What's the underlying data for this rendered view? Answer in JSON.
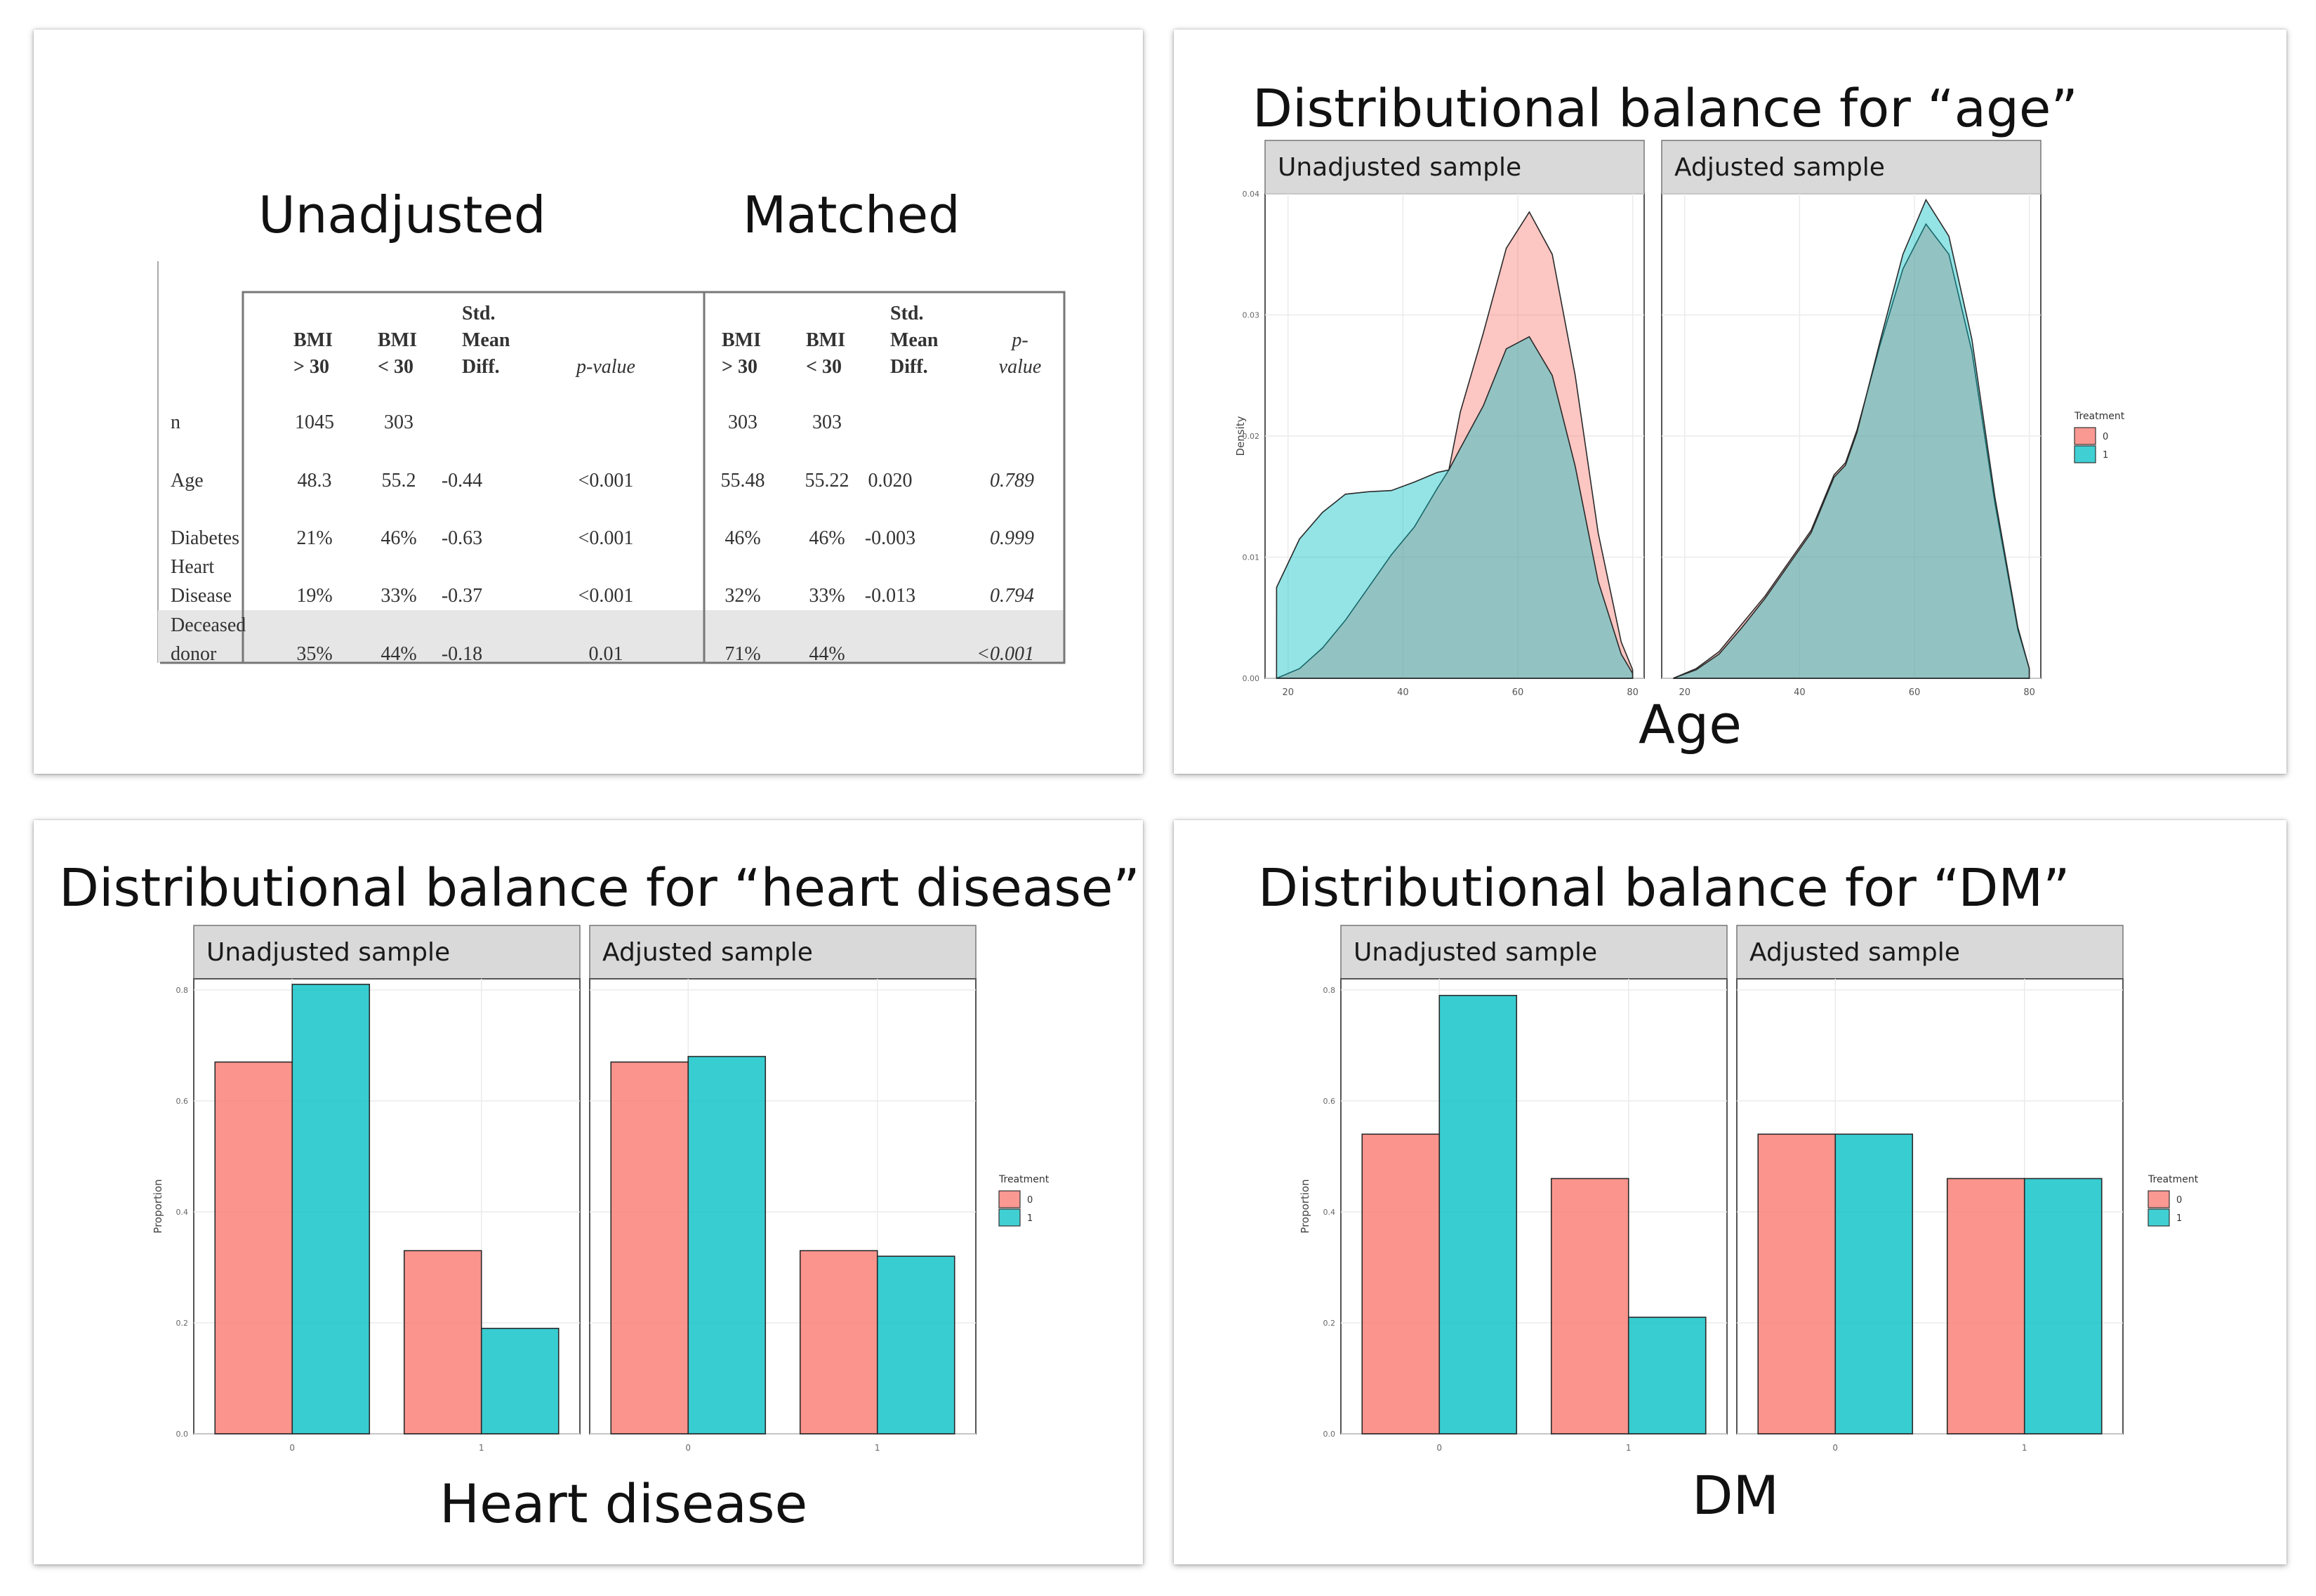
{
  "table_slide": {
    "left_header": "Unadjusted",
    "right_header": "Matched",
    "columns": [
      "",
      "BMI > 30",
      "BMI < 30",
      "Std. Mean Diff.",
      "p-value",
      "BMI > 30",
      "BMI < 30",
      "Std. Mean Diff.",
      "p-value"
    ],
    "col_lines": {
      "bmi_hi": [
        "BMI",
        "> 30"
      ],
      "bmi_lo": [
        "BMI",
        "< 30"
      ],
      "smd": [
        "Std.",
        "Mean",
        "Diff."
      ],
      "pval_left": [
        "p-value"
      ],
      "pval_right": [
        "p-",
        "value"
      ]
    },
    "rows": [
      {
        "label": [
          "n"
        ],
        "cells": [
          "1045",
          "303",
          "",
          "",
          "303",
          "303",
          "",
          ""
        ]
      },
      {
        "label": [
          "Age"
        ],
        "cells": [
          "48.3",
          "55.2",
          "-0.44",
          "<0.001",
          "55.48",
          "55.22",
          "0.020",
          "0.789"
        ]
      },
      {
        "label": [
          "Diabetes"
        ],
        "cells": [
          "21%",
          "46%",
          "-0.63",
          "<0.001",
          "46%",
          "46%",
          "-0.003",
          "0.999"
        ]
      },
      {
        "label": [
          "Heart",
          "Disease"
        ],
        "cells": [
          "19%",
          "33%",
          "-0.37",
          "<0.001",
          "32%",
          "33%",
          "-0.013",
          "0.794"
        ]
      },
      {
        "label": [
          "Deceased",
          "donor"
        ],
        "cells": [
          "35%",
          "44%",
          "-0.18",
          "0.01",
          "71%",
          "44%",
          "",
          "<0.001"
        ]
      }
    ]
  },
  "chart_data": [
    {
      "type": "area",
      "title": "Distributional balance for “age”",
      "caption": "Age",
      "ylabel": "Density",
      "xlabel": "",
      "panels": [
        "Unadjusted sample",
        "Adjusted sample"
      ],
      "legend": {
        "title": "Treatment",
        "entries": [
          "0",
          "1"
        ],
        "position": "right"
      },
      "colors": {
        "0": "#F8766D",
        "1": "#00BFC4"
      },
      "xlim": [
        16,
        82
      ],
      "ylim": [
        0,
        0.04
      ],
      "x_ticks": [
        "20",
        "40",
        "60",
        "80"
      ],
      "y_ticks": [
        "0.00",
        "0.01",
        "0.02",
        "0.03",
        "0.04"
      ],
      "x": [
        18,
        22,
        26,
        30,
        34,
        38,
        42,
        46,
        48,
        50,
        54,
        58,
        62,
        66,
        70,
        74,
        78,
        80
      ],
      "series": [
        {
          "panel": "Unadjusted sample",
          "name": "0",
          "values": [
            0,
            0.0008,
            0.0025,
            0.0048,
            0.0075,
            0.0102,
            0.0125,
            0.0157,
            0.0172,
            0.022,
            0.0285,
            0.0355,
            0.0385,
            0.035,
            0.025,
            0.012,
            0.003,
            0.0007
          ]
        },
        {
          "panel": "Unadjusted sample",
          "name": "1",
          "values": [
            0.0075,
            0.0115,
            0.0137,
            0.0152,
            0.0154,
            0.0155,
            0.0162,
            0.017,
            0.0172,
            0.019,
            0.0225,
            0.0272,
            0.0282,
            0.025,
            0.0175,
            0.008,
            0.002,
            0.0004
          ]
        },
        {
          "panel": "Adjusted sample",
          "name": "0",
          "values": [
            0,
            0.0008,
            0.0022,
            0.0045,
            0.0068,
            0.0095,
            0.0122,
            0.0168,
            0.0178,
            0.0205,
            0.0275,
            0.0338,
            0.0375,
            0.035,
            0.027,
            0.0145,
            0.004,
            0.0008
          ]
        },
        {
          "panel": "Adjusted sample",
          "name": "1",
          "values": [
            0,
            0.0007,
            0.002,
            0.0042,
            0.0066,
            0.0093,
            0.012,
            0.0166,
            0.0176,
            0.0203,
            0.0278,
            0.035,
            0.0395,
            0.0365,
            0.028,
            0.015,
            0.0042,
            0.0008
          ]
        }
      ]
    },
    {
      "type": "bar",
      "title": "Distributional balance for “heart disease”",
      "caption": "Heart disease",
      "ylabel": "Proportion",
      "xlabel": "",
      "panels": [
        "Unadjusted sample",
        "Adjusted sample"
      ],
      "categories": [
        "0",
        "1"
      ],
      "legend": {
        "title": "Treatment",
        "entries": [
          "0",
          "1"
        ],
        "position": "right"
      },
      "colors": {
        "0": "#F8766D",
        "1": "#00BFC4"
      },
      "ylim": [
        0,
        0.82
      ],
      "y_ticks": [
        "0.0",
        "0.2",
        "0.4",
        "0.6",
        "0.8"
      ],
      "series": [
        {
          "panel": "Unadjusted sample",
          "name": "0",
          "values": [
            0.67,
            0.33
          ]
        },
        {
          "panel": "Unadjusted sample",
          "name": "1",
          "values": [
            0.81,
            0.19
          ]
        },
        {
          "panel": "Adjusted sample",
          "name": "0",
          "values": [
            0.67,
            0.33
          ]
        },
        {
          "panel": "Adjusted sample",
          "name": "1",
          "values": [
            0.68,
            0.32
          ]
        }
      ]
    },
    {
      "type": "bar",
      "title": "Distributional balance for “DM”",
      "caption": "DM",
      "ylabel": "Proportion",
      "xlabel": "",
      "panels": [
        "Unadjusted sample",
        "Adjusted sample"
      ],
      "categories": [
        "0",
        "1"
      ],
      "legend": {
        "title": "Treatment",
        "entries": [
          "0",
          "1"
        ],
        "position": "right"
      },
      "colors": {
        "0": "#F8766D",
        "1": "#00BFC4"
      },
      "ylim": [
        0,
        0.82
      ],
      "y_ticks": [
        "0.0",
        "0.2",
        "0.4",
        "0.6",
        "0.8"
      ],
      "series": [
        {
          "panel": "Unadjusted sample",
          "name": "0",
          "values": [
            0.54,
            0.46
          ]
        },
        {
          "panel": "Unadjusted sample",
          "name": "1",
          "values": [
            0.79,
            0.21
          ]
        },
        {
          "panel": "Adjusted sample",
          "name": "0",
          "values": [
            0.54,
            0.46
          ]
        },
        {
          "panel": "Adjusted sample",
          "name": "1",
          "values": [
            0.54,
            0.46
          ]
        }
      ]
    }
  ]
}
